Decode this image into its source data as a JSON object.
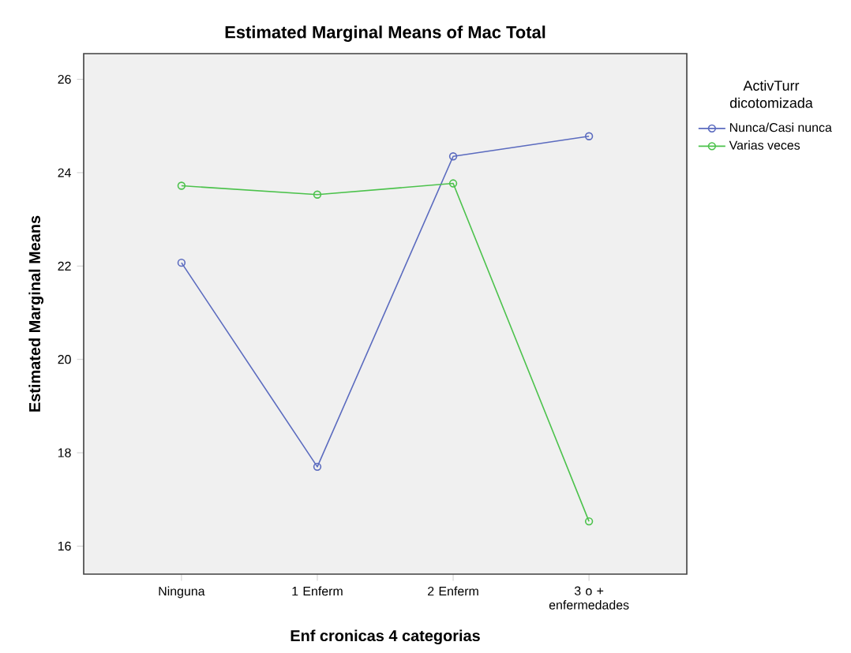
{
  "chart_data": {
    "type": "line",
    "title": "Estimated Marginal Means of Mac Total",
    "xlabel": "Enf cronicas 4 categorias",
    "ylabel": "Estimated Marginal Means",
    "legend_title": "ActivTurr dicotomizada",
    "categories": [
      "Ninguna",
      "1 Enferm",
      "2 Enferm",
      "3 o + enfermedades"
    ],
    "series": [
      {
        "name": "Nunca/Casi nunca",
        "color": "#5b6bbf",
        "values": [
          22.07,
          17.7,
          24.35,
          24.78
        ]
      },
      {
        "name": "Varias veces",
        "color": "#4cc24c",
        "values": [
          23.72,
          23.53,
          23.77,
          16.53
        ]
      }
    ],
    "ylim": [
      15.4,
      26.55
    ],
    "yticks": [
      16,
      18,
      20,
      22,
      24,
      26
    ],
    "grid": false,
    "legend": "right",
    "marker": "circle",
    "line_style": "solid"
  }
}
